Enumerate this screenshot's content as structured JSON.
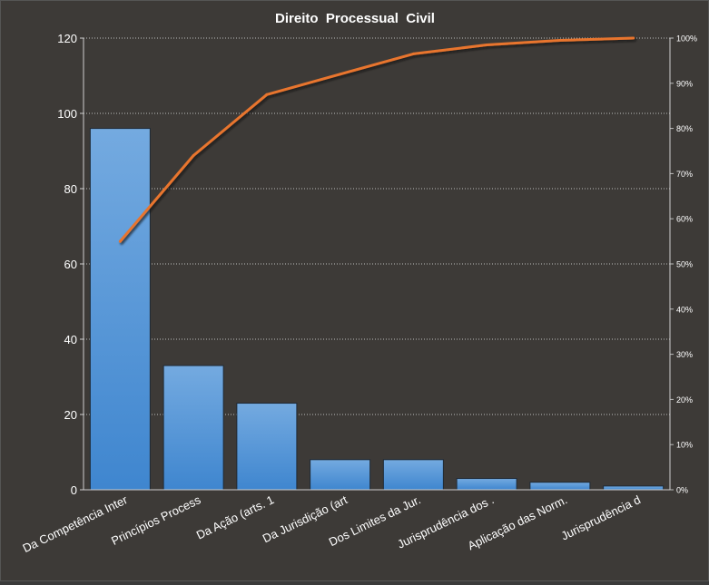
{
  "chart_data": {
    "type": "pareto",
    "title": "Direito  Processual  Civil",
    "categories": [
      "Da Competência Inter",
      "Princípios Process",
      "Da Ação (arts. 1",
      "Da Jurisdição (art",
      "Dos Limites da Jur.",
      "Jurisprudência dos .",
      "Aplicação das Norm.",
      "Jurisprudência d"
    ],
    "series": [
      {
        "type": "bar",
        "values": [
          96,
          33,
          23,
          8,
          8,
          3,
          2,
          1
        ]
      },
      {
        "type": "line",
        "axis": "secondary",
        "values": [
          55,
          74,
          87.5,
          92,
          96.5,
          98.5,
          99.5,
          100
        ]
      }
    ],
    "y_ticks": [
      "0",
      "20",
      "40",
      "60",
      "80",
      "100",
      "120"
    ],
    "ylim": [
      0,
      120
    ],
    "y2_ticks": [
      "0%",
      "10%",
      "20%",
      "30%",
      "40%",
      "50%",
      "60%",
      "70%",
      "80%",
      "90%",
      "100%"
    ],
    "y2lim": [
      0,
      100
    ],
    "grid": true,
    "colors": {
      "background": "#3d3a37",
      "bar_top": "#74aae0",
      "bar_bottom": "#3f86cf",
      "bar_edge": "#1f2a36",
      "line": "#e8742d",
      "line_shadow": "#1c1c1c",
      "text": "#ffffff",
      "grid": "#bdbdbd"
    }
  }
}
